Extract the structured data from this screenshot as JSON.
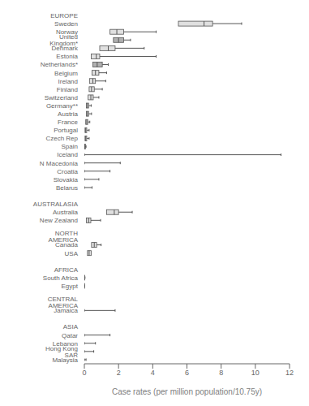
{
  "chart_data": {
    "type": "box",
    "orientation": "horizontal",
    "xlabel": "Case rates (per million population/10.75y)",
    "categories": [
      "EUROPE",
      "Sweden",
      "Norway",
      "United Kingdom*",
      "Denmark",
      "Estonia",
      "Netherlands*",
      "Belgium",
      "Ireland",
      "Finland",
      "Switzerland",
      "Germany**",
      "Austria",
      "France",
      "Portugal",
      "Czech Rep",
      "Spain",
      "Iceland",
      "N Macedonia",
      "Croatia",
      "Slovakia",
      "Belarus",
      null,
      "AUSTRALASIA",
      "Australia",
      "New Zealand",
      null,
      "NORTH AMERICA",
      "Canada",
      "USA",
      null,
      "AFRICA",
      "South Africa",
      "Egypt",
      null,
      "CENTRAL AMERICA",
      "Jamaica",
      null,
      "ASIA",
      "Qatar",
      "Lebanon",
      "Hong Kong SAR",
      "Malaysia"
    ],
    "values": [
      null,
      {
        "q1": 5.5,
        "med": 7.0,
        "q3": 7.5,
        "whislo": 5.5,
        "whishi": 9.2
      },
      {
        "q1": 1.5,
        "med": 1.9,
        "q3": 2.3,
        "whislo": 1.5,
        "whishi": 4.2
      },
      {
        "q1": 1.7,
        "med": 2.0,
        "q3": 2.3,
        "whislo": 1.7,
        "whishi": 2.7
      },
      {
        "q1": 0.9,
        "med": 1.4,
        "q3": 1.8,
        "whislo": 0.9,
        "whishi": 3.5
      },
      {
        "q1": 0.4,
        "med": 0.7,
        "q3": 0.9,
        "whislo": 0.4,
        "whishi": 4.2
      },
      {
        "q1": 0.5,
        "med": 0.75,
        "q3": 1.05,
        "whislo": 0.5,
        "whishi": 1.4
      },
      {
        "q1": 0.45,
        "med": 0.65,
        "q3": 0.85,
        "whislo": 0.45,
        "whishi": 1.3
      },
      {
        "q1": 0.3,
        "med": 0.5,
        "q3": 0.65,
        "whislo": 0.3,
        "whishi": 1.25
      },
      {
        "q1": 0.28,
        "med": 0.42,
        "q3": 0.58,
        "whislo": 0.28,
        "whishi": 1.05
      },
      {
        "q1": 0.22,
        "med": 0.38,
        "q3": 0.52,
        "whislo": 0.22,
        "whishi": 0.85
      },
      {
        "q1": 0.12,
        "med": 0.18,
        "q3": 0.25,
        "whislo": 0.12,
        "whishi": 0.4
      },
      {
        "q1": 0.12,
        "med": 0.18,
        "q3": 0.25,
        "whislo": 0.12,
        "whishi": 0.42
      },
      {
        "q1": 0.08,
        "med": 0.14,
        "q3": 0.2,
        "whislo": 0.08,
        "whishi": 0.32
      },
      {
        "q1": 0.04,
        "med": 0.08,
        "q3": 0.14,
        "whislo": 0.04,
        "whishi": 0.28
      },
      {
        "q1": 0.04,
        "med": 0.08,
        "q3": 0.14,
        "whislo": 0.04,
        "whishi": 0.28
      },
      {
        "q1": 0.02,
        "med": 0.04,
        "q3": 0.06,
        "whislo": 0.02,
        "whishi": 0.1
      },
      {
        "q1": 0.0,
        "med": 0.0,
        "q3": 0.0,
        "whislo": 0.0,
        "whishi": 11.5
      },
      {
        "q1": 0.0,
        "med": 0.0,
        "q3": 0.0,
        "whislo": 0.0,
        "whishi": 2.1
      },
      {
        "q1": 0.0,
        "med": 0.0,
        "q3": 0.0,
        "whislo": 0.0,
        "whishi": 1.5
      },
      {
        "q1": 0.0,
        "med": 0.0,
        "q3": 0.0,
        "whislo": 0.0,
        "whishi": 0.85
      },
      {
        "q1": 0.0,
        "med": 0.0,
        "q3": 0.0,
        "whislo": 0.0,
        "whishi": 0.45
      },
      null,
      null,
      {
        "q1": 1.3,
        "med": 1.75,
        "q3": 2.0,
        "whislo": 1.3,
        "whishi": 2.8
      },
      {
        "q1": 0.12,
        "med": 0.25,
        "q3": 0.38,
        "whislo": 0.12,
        "whishi": 0.95
      },
      null,
      null,
      {
        "q1": 0.42,
        "med": 0.58,
        "q3": 0.72,
        "whislo": 0.42,
        "whishi": 0.98
      },
      {
        "q1": 0.18,
        "med": 0.28,
        "q3": 0.4,
        "whislo": 0.18,
        "whishi": 0.4
      },
      null,
      null,
      {
        "q1": 0.0,
        "med": 0.0,
        "q3": 0.02,
        "whislo": 0.0,
        "whishi": 0.04
      },
      {
        "q1": 0.0,
        "med": 0.0,
        "q3": 0.01,
        "whislo": 0.0,
        "whishi": 0.02
      },
      null,
      null,
      {
        "q1": 0.0,
        "med": 0.0,
        "q3": 0.0,
        "whislo": 0.0,
        "whishi": 1.8
      },
      null,
      null,
      {
        "q1": 0.0,
        "med": 0.0,
        "q3": 0.0,
        "whislo": 0.0,
        "whishi": 1.5
      },
      {
        "q1": 0.0,
        "med": 0.0,
        "q3": 0.0,
        "whislo": 0.0,
        "whishi": 0.65
      },
      {
        "q1": 0.0,
        "med": 0.0,
        "q3": 0.0,
        "whislo": 0.0,
        "whishi": 0.55
      },
      {
        "q1": 0.0,
        "med": 0.0,
        "q3": 0.0,
        "whislo": 0.0,
        "whishi": 0.1
      }
    ],
    "colors": [
      null,
      "#e0e0e0",
      "#e0e0e0",
      "#b0b0b0",
      "#e0e0e0",
      "#e0e0e0",
      "#b0b0b0",
      "#e0e0e0",
      "#e0e0e0",
      "#e0e0e0",
      "#e0e0e0",
      "#e0e0e0",
      "#e0e0e0",
      "#e0e0e0",
      "#e0e0e0",
      "#e0e0e0",
      "#e0e0e0",
      "#e0e0e0",
      "#e0e0e0",
      "#e0e0e0",
      "#e0e0e0",
      "#e0e0e0",
      null,
      null,
      "#e0e0e0",
      "#e0e0e0",
      null,
      null,
      "#e0e0e0",
      "#e0e0e0",
      null,
      null,
      "#e0e0e0",
      "#e0e0e0",
      null,
      null,
      "#e0e0e0",
      null,
      null,
      "#e0e0e0",
      "#e0e0e0",
      "#e0e0e0",
      "#e0e0e0"
    ],
    "xlim": [
      0,
      12
    ],
    "xticks": [
      0,
      2,
      4,
      6,
      8,
      10,
      12
    ],
    "grid": false
  }
}
